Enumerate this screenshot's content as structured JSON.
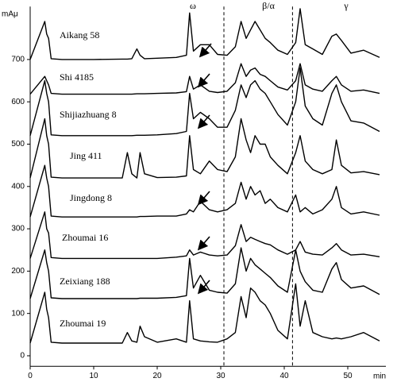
{
  "chart_data": {
    "type": "line",
    "y_label": "mAμ",
    "x_label": "min",
    "annotations": [
      "ω",
      "β/α",
      "γ"
    ],
    "reference_lines": [
      30.5,
      41.3
    ],
    "xlim": [
      0,
      56
    ],
    "xticks": [
      0,
      10,
      20,
      30,
      40,
      50
    ],
    "ylim": [
      -25,
      825
    ],
    "yticks": [
      0,
      100,
      200,
      300,
      400,
      500,
      600,
      700
    ],
    "x": [
      0,
      2.3,
      2.6,
      2.9,
      3.3,
      5,
      10,
      14.5,
      15.3,
      16,
      16.8,
      17.3,
      18,
      20,
      23,
      24.6,
      25.1,
      25.7,
      26.8,
      28.2,
      29.5,
      31,
      32.3,
      33.2,
      34,
      34.7,
      35.4,
      36.2,
      37,
      37.8,
      39,
      40.5,
      41.8,
      42.5,
      43.3,
      44.5,
      46,
      47.5,
      48.2,
      49,
      50.5,
      52.5,
      55
    ],
    "series": [
      {
        "name": "Aikang 58",
        "color": "#000000",
        "values": [
          700,
          790,
          760,
          750,
          702,
          700,
          700,
          701,
          701,
          702,
          725,
          710,
          702,
          703,
          705,
          710,
          810,
          720,
          735,
          735,
          712,
          710,
          730,
          790,
          750,
          770,
          790,
          770,
          750,
          740,
          722,
          712,
          740,
          820,
          735,
          725,
          712,
          755,
          760,
          745,
          715,
          722,
          705
        ]
      },
      {
        "name": "Shi 4185",
        "color": "#000000",
        "values": [
          618,
          660,
          650,
          640,
          620,
          618,
          618,
          618,
          618,
          618,
          619,
          619,
          619,
          620,
          621,
          624,
          660,
          630,
          640,
          625,
          622,
          625,
          645,
          690,
          660,
          675,
          680,
          665,
          660,
          650,
          635,
          628,
          650,
          690,
          640,
          630,
          625,
          650,
          660,
          640,
          625,
          628,
          620
        ]
      },
      {
        "name": "Shijiazhuang 8",
        "color": "#000000",
        "values": [
          520,
          650,
          620,
          600,
          522,
          520,
          520,
          520,
          520,
          520,
          521,
          521,
          521,
          522,
          525,
          530,
          620,
          560,
          575,
          560,
          540,
          540,
          580,
          640,
          610,
          640,
          650,
          630,
          620,
          600,
          570,
          545,
          600,
          680,
          590,
          560,
          545,
          620,
          640,
          600,
          555,
          550,
          530
        ]
      },
      {
        "name": "Jing 411",
        "color": "#000000",
        "values": [
          420,
          560,
          520,
          500,
          422,
          420,
          420,
          420,
          480,
          430,
          420,
          480,
          430,
          421,
          422,
          425,
          520,
          440,
          430,
          460,
          440,
          435,
          470,
          560,
          510,
          480,
          520,
          500,
          500,
          470,
          450,
          430,
          480,
          520,
          460,
          440,
          430,
          440,
          510,
          450,
          432,
          435,
          428
        ]
      },
      {
        "name": "Jingdong 8",
        "color": "#000000",
        "values": [
          328,
          450,
          420,
          400,
          330,
          328,
          328,
          328,
          328,
          328,
          328,
          329,
          329,
          330,
          330,
          335,
          345,
          340,
          365,
          345,
          340,
          345,
          360,
          410,
          370,
          400,
          380,
          390,
          360,
          370,
          350,
          340,
          380,
          340,
          350,
          335,
          345,
          370,
          400,
          350,
          335,
          340,
          332
        ]
      },
      {
        "name": "Zhoumai 16",
        "color": "#000000",
        "values": [
          230,
          340,
          300,
          290,
          232,
          230,
          230,
          230,
          230,
          230,
          230,
          230,
          230,
          230,
          233,
          236,
          250,
          238,
          245,
          238,
          236,
          238,
          260,
          310,
          270,
          280,
          275,
          270,
          265,
          262,
          250,
          240,
          250,
          270,
          245,
          240,
          238,
          255,
          265,
          250,
          238,
          240,
          234
        ]
      },
      {
        "name": "Zeixiang 188",
        "color": "#000000",
        "values": [
          135,
          250,
          220,
          200,
          137,
          135,
          135,
          135,
          135,
          135,
          135,
          136,
          136,
          136,
          138,
          142,
          230,
          160,
          190,
          155,
          150,
          148,
          170,
          255,
          200,
          230,
          215,
          205,
          195,
          185,
          165,
          150,
          250,
          200,
          175,
          155,
          150,
          205,
          220,
          180,
          160,
          165,
          145
        ]
      },
      {
        "name": "Zhoumai 19",
        "color": "#000000",
        "values": [
          30,
          150,
          110,
          90,
          32,
          30,
          30,
          30,
          55,
          35,
          32,
          70,
          45,
          32,
          40,
          32,
          130,
          40,
          35,
          33,
          32,
          40,
          55,
          140,
          90,
          160,
          150,
          130,
          120,
          100,
          60,
          40,
          170,
          70,
          130,
          55,
          45,
          40,
          42,
          40,
          45,
          55,
          35
        ]
      }
    ]
  }
}
